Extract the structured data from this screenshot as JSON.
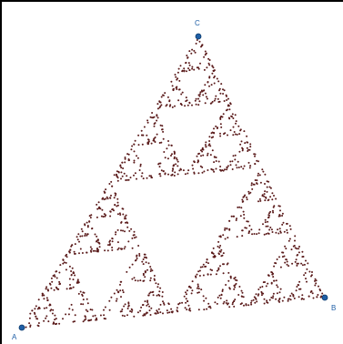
{
  "diagram": {
    "vertices": [
      {
        "label": "A",
        "name": "vertex-a"
      },
      {
        "label": "B",
        "name": "vertex-b"
      },
      {
        "label": "C",
        "name": "vertex-c"
      }
    ],
    "colors": {
      "frame": "#000000",
      "background": "#ffffff",
      "vertex_point": "#1f5fa6",
      "vertex_label": "#1f5fa6",
      "chaos_points": "#5a1a1a"
    }
  }
}
